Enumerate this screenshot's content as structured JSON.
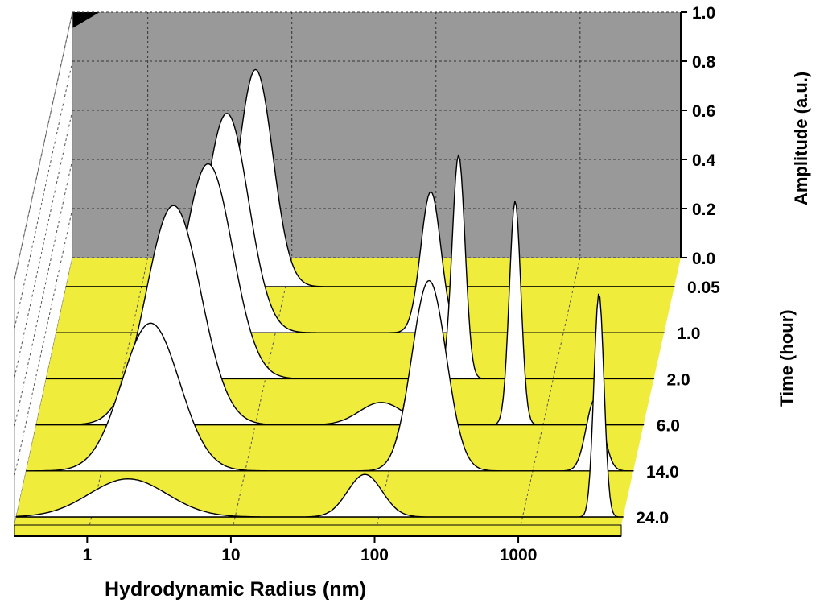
{
  "chart_data": {
    "type": "area",
    "style": "3d-waterfall",
    "xlabel": "Hydrodynamic Radius (nm)",
    "zlabel": "Amplitude (a.u.)",
    "ylabel": "Time (hour)",
    "x_scale": "log",
    "xlim": [
      0.3,
      5000
    ],
    "x_ticks": [
      1,
      10,
      100,
      1000
    ],
    "x_tick_labels": [
      "1",
      "10",
      "100",
      "1000"
    ],
    "z_ticks": [
      0.0,
      0.2,
      0.4,
      0.6,
      0.8,
      1.0
    ],
    "z_tick_labels": [
      "0.0",
      "0.2",
      "0.4",
      "0.6",
      "0.8",
      "1.0"
    ],
    "zlim": [
      0,
      1
    ],
    "y_ticks": [
      "0.05",
      "1.0",
      "2.0",
      "6.0",
      "14.0",
      "24.0"
    ],
    "grid": true,
    "back_wall_color": "#999999",
    "floor_color": "#f0ec3c",
    "fill_color": "#ffffff",
    "series": [
      {
        "name": "0.05",
        "peaks": [
          {
            "center": 6.2,
            "amplitude": 0.97,
            "width_log10": 0.12
          }
        ]
      },
      {
        "name": "1.0",
        "peaks": [
          {
            "center": 4.6,
            "amplitude": 0.98,
            "width_log10": 0.15
          },
          {
            "center": 120,
            "amplitude": 0.63,
            "width_log10": 0.07
          }
        ]
      },
      {
        "name": "2.0",
        "peaks": [
          {
            "center": 4.0,
            "amplitude": 0.96,
            "width_log10": 0.17
          },
          {
            "center": 220,
            "amplitude": 1.0,
            "width_log10": 0.045
          }
        ]
      },
      {
        "name": "6.0",
        "peaks": [
          {
            "center": 2.7,
            "amplitude": 0.98,
            "width_log10": 0.19
          },
          {
            "center": 75,
            "amplitude": 0.1,
            "width_log10": 0.15
          },
          {
            "center": 640,
            "amplitude": 1.0,
            "width_log10": 0.04
          }
        ]
      },
      {
        "name": "14.0",
        "peaks": [
          {
            "center": 2.2,
            "amplitude": 0.66,
            "width_log10": 0.2
          },
          {
            "center": 190,
            "amplitude": 0.85,
            "width_log10": 0.12
          },
          {
            "center": 2700,
            "amplitude": 0.32,
            "width_log10": 0.06
          }
        ]
      },
      {
        "name": "24.0",
        "peaks": [
          {
            "center": 1.8,
            "amplitude": 0.17,
            "width_log10": 0.27
          },
          {
            "center": 80,
            "amplitude": 0.19,
            "width_log10": 0.12
          },
          {
            "center": 3400,
            "amplitude": 1.0,
            "width_log10": 0.035
          }
        ]
      }
    ]
  }
}
